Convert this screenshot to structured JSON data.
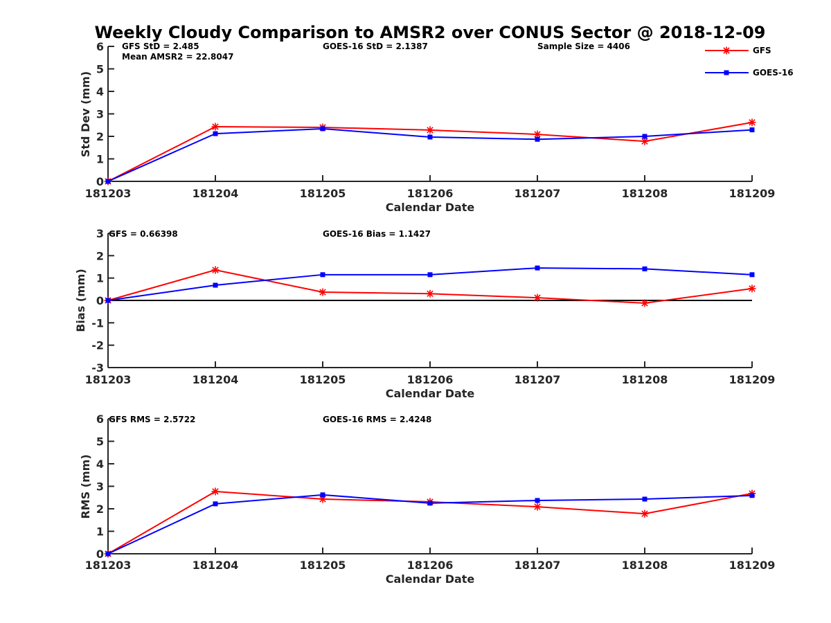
{
  "chart_data": {
    "title": "Weekly Cloudy Comparison to AMSR2 over CONUS Sector @ 2018-12-09",
    "legend": {
      "placement": "top-right",
      "entries": [
        {
          "name": "GFS",
          "color": "#ff0000",
          "marker": "asterisk"
        },
        {
          "name": "GOES-16",
          "color": "#0000ff",
          "marker": "square"
        }
      ]
    },
    "panels": [
      {
        "type": "line",
        "ylabel": "Std Dev (mm)",
        "xlabel": "Calendar Date",
        "categories": [
          "181203",
          "181204",
          "181205",
          "181206",
          "181207",
          "181208",
          "181209"
        ],
        "ylim": [
          0,
          6
        ],
        "yticks": [
          "0",
          "1",
          "2",
          "3",
          "4",
          "5",
          "6"
        ],
        "zero_line": false,
        "annotations": [
          "GFS StD = 2.485",
          "Mean AMSR2 = 22.8047",
          "GOES-16 StD = 2.1387",
          "Sample Size = 4406"
        ],
        "series": [
          {
            "name": "GFS",
            "color": "#ff0000",
            "marker": "asterisk",
            "values": [
              0,
              2.43,
              2.4,
              2.28,
              2.09,
              1.78,
              2.62
            ]
          },
          {
            "name": "GOES-16",
            "color": "#0000ff",
            "marker": "square",
            "values": [
              0,
              2.12,
              2.34,
              1.97,
              1.87,
              2.0,
              2.29
            ]
          }
        ]
      },
      {
        "type": "line",
        "ylabel": "Bias (mm)",
        "xlabel": "Calendar Date",
        "categories": [
          "181203",
          "181204",
          "181205",
          "181206",
          "181207",
          "181208",
          "181209"
        ],
        "ylim": [
          -3,
          3
        ],
        "yticks": [
          "-3",
          "-2",
          "-1",
          "0",
          "1",
          "2",
          "3"
        ],
        "zero_line": true,
        "annotations": [
          "GFS = 0.66398",
          "GOES-16 Bias  = 1.1427"
        ],
        "series": [
          {
            "name": "GFS",
            "color": "#ff0000",
            "marker": "asterisk",
            "values": [
              0,
              1.36,
              0.37,
              0.3,
              0.12,
              -0.12,
              0.53
            ]
          },
          {
            "name": "GOES-16",
            "color": "#0000ff",
            "marker": "square",
            "values": [
              0,
              0.68,
              1.15,
              1.15,
              1.45,
              1.41,
              1.15
            ]
          }
        ]
      },
      {
        "type": "line",
        "ylabel": "RMS (mm)",
        "xlabel": "Calendar Date",
        "categories": [
          "181203",
          "181204",
          "181205",
          "181206",
          "181207",
          "181208",
          "181209"
        ],
        "ylim": [
          0,
          6
        ],
        "yticks": [
          "0",
          "1",
          "2",
          "3",
          "4",
          "5",
          "6"
        ],
        "zero_line": false,
        "annotations": [
          "GFS RMS = 2.5722",
          "GOES-16 RMS = 2.4248"
        ],
        "series": [
          {
            "name": "GFS",
            "color": "#ff0000",
            "marker": "asterisk",
            "values": [
              0,
              2.77,
              2.43,
              2.31,
              2.09,
              1.78,
              2.68
            ]
          },
          {
            "name": "GOES-16",
            "color": "#0000ff",
            "marker": "square",
            "values": [
              0,
              2.22,
              2.62,
              2.25,
              2.37,
              2.43,
              2.59
            ]
          }
        ]
      }
    ]
  }
}
